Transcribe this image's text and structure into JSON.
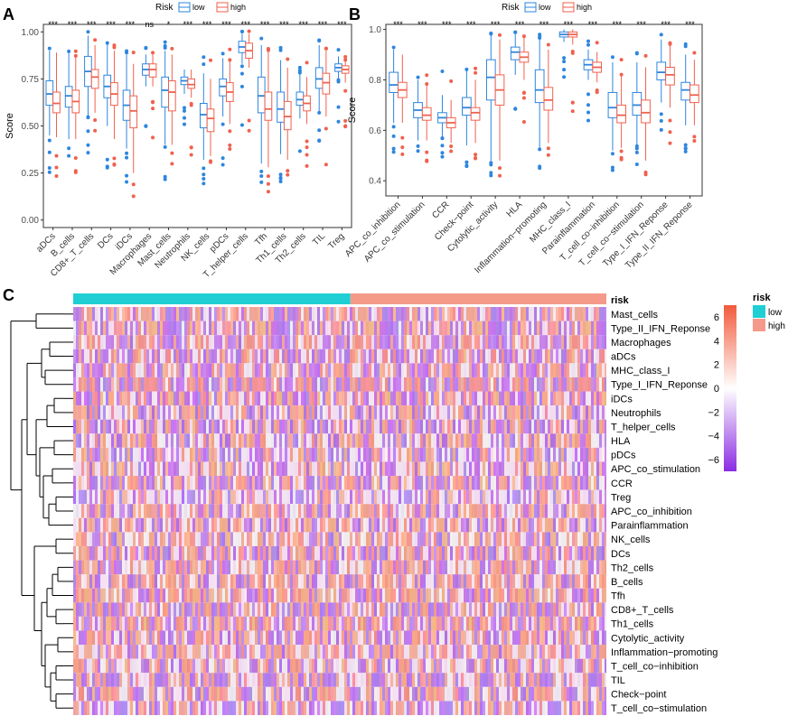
{
  "colors": {
    "low": "#2e86de",
    "high": "#f0614e",
    "low_bar": "#1fcfd4",
    "high_bar": "#f59a8a"
  },
  "panels": {
    "a": "A",
    "b": "B",
    "c": "C"
  },
  "chart_data": [
    {
      "type": "box",
      "panel": "A",
      "legend": {
        "title": "Risk",
        "items": [
          "low",
          "high"
        ],
        "placement": "top-center"
      },
      "ylabel": "Score",
      "ylim": [
        -0.04,
        1.04
      ],
      "yticks": [
        0.0,
        0.25,
        0.5,
        0.75,
        1.0
      ],
      "ytick_labels": [
        "0.00",
        "0.25",
        "0.50",
        "0.75",
        "1.00"
      ],
      "categories": [
        "aDCs",
        "B_cells",
        "CD8+_T_cells",
        "DCs",
        "iDCs",
        "Macrophages",
        "Mast_cells",
        "Neutrophils",
        "NK_cells",
        "pDCs",
        "T_helper_cells",
        "Tfh",
        "Th1_cells",
        "Th2_cells",
        "TIL",
        "Treg"
      ],
      "significance": [
        "***",
        "***",
        "***",
        "***",
        "***",
        "ns",
        "*",
        "***",
        "***",
        "***",
        "***",
        "***",
        "***",
        "***",
        "***",
        "***"
      ],
      "series": [
        {
          "name": "low",
          "boxes": [
            {
              "q1": 0.61,
              "med": 0.67,
              "q3": 0.74,
              "lo": 0.45,
              "hi": 0.9
            },
            {
              "q1": 0.6,
              "med": 0.66,
              "q3": 0.71,
              "lo": 0.43,
              "hi": 0.89
            },
            {
              "q1": 0.71,
              "med": 0.79,
              "q3": 0.87,
              "lo": 0.55,
              "hi": 0.98
            },
            {
              "q1": 0.65,
              "med": 0.71,
              "q3": 0.77,
              "lo": 0.5,
              "hi": 0.94
            },
            {
              "q1": 0.53,
              "med": 0.61,
              "q3": 0.69,
              "lo": 0.38,
              "hi": 0.88
            },
            {
              "q1": 0.77,
              "med": 0.8,
              "q3": 0.83,
              "lo": 0.71,
              "hi": 0.88
            },
            {
              "q1": 0.6,
              "med": 0.69,
              "q3": 0.76,
              "lo": 0.4,
              "hi": 0.9
            },
            {
              "q1": 0.72,
              "med": 0.74,
              "q3": 0.76,
              "lo": 0.67,
              "hi": 0.8
            },
            {
              "q1": 0.49,
              "med": 0.56,
              "q3": 0.62,
              "lo": 0.32,
              "hi": 0.78
            },
            {
              "q1": 0.66,
              "med": 0.71,
              "q3": 0.75,
              "lo": 0.55,
              "hi": 0.86
            },
            {
              "q1": 0.89,
              "med": 0.92,
              "q3": 0.95,
              "lo": 0.83,
              "hi": 0.99
            },
            {
              "q1": 0.57,
              "med": 0.66,
              "q3": 0.76,
              "lo": 0.3,
              "hi": 0.93
            },
            {
              "q1": 0.52,
              "med": 0.59,
              "q3": 0.68,
              "lo": 0.35,
              "hi": 0.85
            },
            {
              "q1": 0.61,
              "med": 0.64,
              "q3": 0.68,
              "lo": 0.54,
              "hi": 0.78
            },
            {
              "q1": 0.7,
              "med": 0.75,
              "q3": 0.81,
              "lo": 0.57,
              "hi": 0.93
            },
            {
              "q1": 0.79,
              "med": 0.81,
              "q3": 0.83,
              "lo": 0.75,
              "hi": 0.87
            }
          ]
        },
        {
          "name": "high",
          "boxes": [
            {
              "q1": 0.57,
              "med": 0.62,
              "q3": 0.68,
              "lo": 0.44,
              "hi": 0.89
            },
            {
              "q1": 0.57,
              "med": 0.63,
              "q3": 0.69,
              "lo": 0.43,
              "hi": 0.87
            },
            {
              "q1": 0.7,
              "med": 0.76,
              "q3": 0.8,
              "lo": 0.57,
              "hi": 0.93
            },
            {
              "q1": 0.61,
              "med": 0.67,
              "q3": 0.73,
              "lo": 0.43,
              "hi": 0.9
            },
            {
              "q1": 0.49,
              "med": 0.58,
              "q3": 0.66,
              "lo": 0.25,
              "hi": 0.83
            },
            {
              "q1": 0.76,
              "med": 0.8,
              "q3": 0.83,
              "lo": 0.71,
              "hi": 0.88
            },
            {
              "q1": 0.58,
              "med": 0.68,
              "q3": 0.74,
              "lo": 0.4,
              "hi": 0.88
            },
            {
              "q1": 0.7,
              "med": 0.72,
              "q3": 0.75,
              "lo": 0.65,
              "hi": 0.8
            },
            {
              "q1": 0.47,
              "med": 0.54,
              "q3": 0.59,
              "lo": 0.34,
              "hi": 0.75
            },
            {
              "q1": 0.63,
              "med": 0.68,
              "q3": 0.73,
              "lo": 0.51,
              "hi": 0.85
            },
            {
              "q1": 0.86,
              "med": 0.9,
              "q3": 0.94,
              "lo": 0.81,
              "hi": 0.99
            },
            {
              "q1": 0.53,
              "med": 0.59,
              "q3": 0.68,
              "lo": 0.28,
              "hi": 0.9
            },
            {
              "q1": 0.48,
              "med": 0.55,
              "q3": 0.63,
              "lo": 0.32,
              "hi": 0.81
            },
            {
              "q1": 0.58,
              "med": 0.62,
              "q3": 0.66,
              "lo": 0.51,
              "hi": 0.76
            },
            {
              "q1": 0.67,
              "med": 0.73,
              "q3": 0.78,
              "lo": 0.55,
              "hi": 0.9
            },
            {
              "q1": 0.78,
              "med": 0.8,
              "q3": 0.82,
              "lo": 0.73,
              "hi": 0.85
            }
          ]
        }
      ]
    },
    {
      "type": "box",
      "panel": "B",
      "legend": {
        "title": "Risk",
        "items": [
          "low",
          "high"
        ],
        "placement": "top-center"
      },
      "ylabel": "Score",
      "ylim": [
        0.34,
        1.02
      ],
      "yticks": [
        0.4,
        0.6,
        0.8,
        1.0
      ],
      "ytick_labels": [
        "0.4",
        "0.6",
        "0.8",
        "1.0"
      ],
      "categories": [
        "APC_co_inhibition",
        "APC_co_stimulation",
        "CCR",
        "Check−point",
        "Cytolytic_activity",
        "HLA",
        "Inflammation−promoting",
        "MHC_class_I",
        "Parainflammation",
        "T_cell_co−inhibition",
        "T_cell_co−stimulation",
        "Type_I_IFN_Reponse",
        "Type_II_IFN_Reponse"
      ],
      "significance": [
        "***",
        "***",
        "***",
        "***",
        "***",
        "***",
        "***",
        "***",
        "***",
        "***",
        "***",
        "***",
        "***"
      ],
      "series": [
        {
          "name": "low",
          "boxes": [
            {
              "q1": 0.75,
              "med": 0.78,
              "q3": 0.83,
              "lo": 0.63,
              "hi": 0.92
            },
            {
              "q1": 0.65,
              "med": 0.68,
              "q3": 0.71,
              "lo": 0.56,
              "hi": 0.8
            },
            {
              "q1": 0.63,
              "med": 0.65,
              "q3": 0.67,
              "lo": 0.57,
              "hi": 0.74
            },
            {
              "q1": 0.66,
              "med": 0.69,
              "q3": 0.73,
              "lo": 0.54,
              "hi": 0.84
            },
            {
              "q1": 0.72,
              "med": 0.81,
              "q3": 0.88,
              "lo": 0.48,
              "hi": 0.98
            },
            {
              "q1": 0.88,
              "med": 0.91,
              "q3": 0.93,
              "lo": 0.82,
              "hi": 0.98
            },
            {
              "q1": 0.71,
              "med": 0.76,
              "q3": 0.84,
              "lo": 0.53,
              "hi": 0.96
            },
            {
              "q1": 0.97,
              "med": 0.98,
              "q3": 0.99,
              "lo": 0.95,
              "hi": 1.0
            },
            {
              "q1": 0.84,
              "med": 0.86,
              "q3": 0.88,
              "lo": 0.8,
              "hi": 0.92
            },
            {
              "q1": 0.65,
              "med": 0.69,
              "q3": 0.75,
              "lo": 0.52,
              "hi": 0.87
            },
            {
              "q1": 0.66,
              "med": 0.7,
              "q3": 0.75,
              "lo": 0.54,
              "hi": 0.87
            },
            {
              "q1": 0.8,
              "med": 0.83,
              "q3": 0.87,
              "lo": 0.71,
              "hi": 0.96
            },
            {
              "q1": 0.72,
              "med": 0.76,
              "q3": 0.79,
              "lo": 0.62,
              "hi": 0.9
            }
          ]
        },
        {
          "name": "high",
          "boxes": [
            {
              "q1": 0.73,
              "med": 0.76,
              "q3": 0.79,
              "lo": 0.63,
              "hi": 0.9
            },
            {
              "q1": 0.64,
              "med": 0.66,
              "q3": 0.69,
              "lo": 0.56,
              "hi": 0.78
            },
            {
              "q1": 0.61,
              "med": 0.63,
              "q3": 0.65,
              "lo": 0.55,
              "hi": 0.72
            },
            {
              "q1": 0.64,
              "med": 0.67,
              "q3": 0.69,
              "lo": 0.55,
              "hi": 0.8
            },
            {
              "q1": 0.7,
              "med": 0.76,
              "q3": 0.82,
              "lo": 0.48,
              "hi": 0.96
            },
            {
              "q1": 0.87,
              "med": 0.89,
              "q3": 0.91,
              "lo": 0.8,
              "hi": 0.97
            },
            {
              "q1": 0.68,
              "med": 0.72,
              "q3": 0.77,
              "lo": 0.55,
              "hi": 0.92
            },
            {
              "q1": 0.97,
              "med": 0.98,
              "q3": 0.99,
              "lo": 0.94,
              "hi": 1.0
            },
            {
              "q1": 0.83,
              "med": 0.85,
              "q3": 0.87,
              "lo": 0.79,
              "hi": 0.91
            },
            {
              "q1": 0.63,
              "med": 0.66,
              "q3": 0.7,
              "lo": 0.53,
              "hi": 0.82
            },
            {
              "q1": 0.63,
              "med": 0.67,
              "q3": 0.72,
              "lo": 0.48,
              "hi": 0.85
            },
            {
              "q1": 0.78,
              "med": 0.82,
              "q3": 0.85,
              "lo": 0.69,
              "hi": 0.94
            },
            {
              "q1": 0.71,
              "med": 0.74,
              "q3": 0.78,
              "lo": 0.62,
              "hi": 0.88
            }
          ]
        }
      ]
    },
    {
      "type": "heatmap",
      "panel": "C",
      "annotation_label": "risk",
      "annotation_groups": [
        "low",
        "high"
      ],
      "low_fraction": 0.52,
      "legend_risk": {
        "title": "risk",
        "items": [
          "low",
          "high"
        ]
      },
      "colorbar": {
        "range": [
          -7,
          7
        ],
        "ticks": [
          6,
          4,
          2,
          0,
          -2,
          -4,
          -6
        ],
        "tick_labels": [
          "6",
          "4",
          "2",
          "0",
          "−2",
          "−4",
          "−6"
        ]
      },
      "rows": [
        "Mast_cells",
        "Type_II_IFN_Reponse",
        "Macrophages",
        "aDCs",
        "MHC_class_I",
        "Type_I_IFN_Reponse",
        "iDCs",
        "Neutrophils",
        "T_helper_cells",
        "HLA",
        "pDCs",
        "APC_co_stimulation",
        "CCR",
        "Treg",
        "APC_co_inhibition",
        "Parainflammation",
        "NK_cells",
        "DCs",
        "Th2_cells",
        "B_cells",
        "Tfh",
        "CD8+_T_cells",
        "Th1_cells",
        "Cytolytic_activity",
        "Inflammation−promoting",
        "T_cell_co−inhibition",
        "TIL",
        "Check−point",
        "T_cell_co−stimulation"
      ]
    }
  ]
}
